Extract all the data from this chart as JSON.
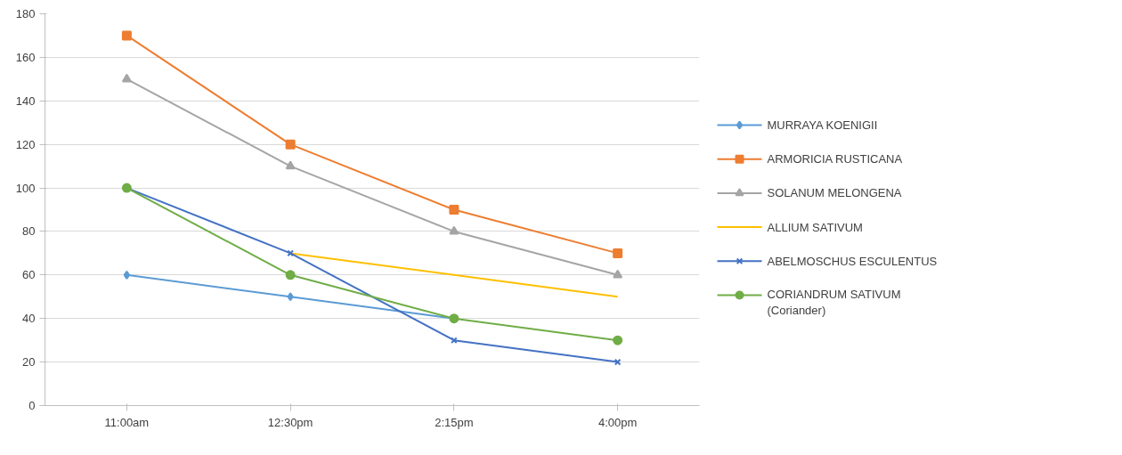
{
  "chart_data": {
    "type": "line",
    "categories": [
      "11:00am",
      "12:30pm",
      "2:15pm",
      "4:00pm"
    ],
    "series": [
      {
        "name": "MURRAYA KOENIGII",
        "color": "#5b9bd5",
        "marker": "diamond",
        "values": [
          60,
          50,
          40,
          null
        ]
      },
      {
        "name": "ARMORICIA RUSTICANA",
        "color": "#ed7d31",
        "marker": "square",
        "values": [
          170,
          120,
          90,
          70
        ]
      },
      {
        "name": "SOLANUM MELONGENA",
        "color": "#a5a5a5",
        "marker": "triangle",
        "values": [
          150,
          110,
          80,
          60
        ]
      },
      {
        "name": "ALLIUM SATIVUM",
        "color": "#ffc000",
        "marker": "none",
        "values": [
          null,
          70,
          60,
          50
        ]
      },
      {
        "name": "ABELMOSCHUS ESCULENTUS",
        "color": "#4472c4",
        "marker": "cross",
        "values": [
          100,
          70,
          30,
          20
        ]
      },
      {
        "name": "CORIANDRUM SATIVUM\n(Coriander)",
        "color": "#70ad47",
        "marker": "circle",
        "values": [
          100,
          60,
          40,
          30
        ]
      }
    ],
    "ylim": [
      0,
      180
    ],
    "yticks": [
      0,
      20,
      40,
      60,
      80,
      100,
      120,
      140,
      160,
      180
    ],
    "grid": "y",
    "legend": "right",
    "line_style": "solid"
  }
}
